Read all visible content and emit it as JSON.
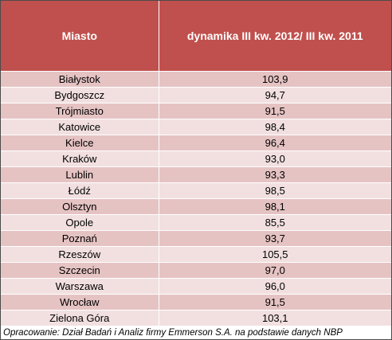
{
  "table": {
    "header": {
      "city": "Miasto",
      "dynamics": "dynamika III kw. 2012/ III kw. 2011"
    },
    "rows": [
      {
        "city": "Białystok",
        "value": "103,9"
      },
      {
        "city": "Bydgoszcz",
        "value": "94,7"
      },
      {
        "city": "Trójmiasto",
        "value": "91,5"
      },
      {
        "city": "Katowice",
        "value": "98,4"
      },
      {
        "city": "Kielce",
        "value": "96,4"
      },
      {
        "city": "Kraków",
        "value": "93,0"
      },
      {
        "city": "Lublin",
        "value": "93,3"
      },
      {
        "city": "Łódź",
        "value": "98,5"
      },
      {
        "city": "Olsztyn",
        "value": "98,1"
      },
      {
        "city": "Opole",
        "value": "85,5"
      },
      {
        "city": "Poznań",
        "value": "93,7"
      },
      {
        "city": "Rzeszów",
        "value": "105,5"
      },
      {
        "city": "Szczecin",
        "value": "97,0"
      },
      {
        "city": "Warszawa",
        "value": "96,0"
      },
      {
        "city": "Wrocław",
        "value": "91,5"
      },
      {
        "city": "Zielona Góra",
        "value": "103,1"
      }
    ]
  },
  "footer": {
    "source": "Opracowanie: Dział Badań i Analiz firmy Emmerson S.A. na podstawie danych NBP"
  },
  "colors": {
    "header_bg": "#c0504d",
    "row_odd": "#e6c3c3",
    "row_even": "#f2e0e0"
  }
}
